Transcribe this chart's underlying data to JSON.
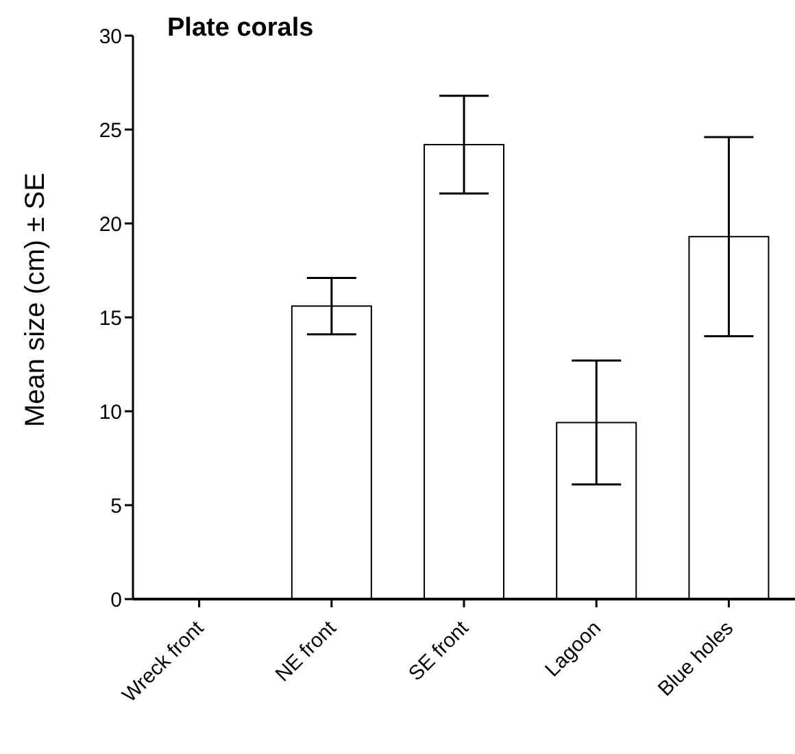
{
  "chart_data": {
    "type": "bar",
    "title": "Plate corals",
    "ylabel": "Mean size (cm) ± SE",
    "categories": [
      "Wreck front",
      "NE front",
      "SE front",
      "Lagoon",
      "Blue holes"
    ],
    "values": [
      null,
      15.6,
      24.2,
      9.4,
      19.3
    ],
    "errors": [
      null,
      1.5,
      2.6,
      3.3,
      5.3
    ],
    "color": "#ffffff",
    "ylim": [
      0,
      30
    ],
    "yticks": [
      0,
      5,
      10,
      15,
      20,
      25,
      30
    ],
    "grid": false,
    "legend": false
  }
}
